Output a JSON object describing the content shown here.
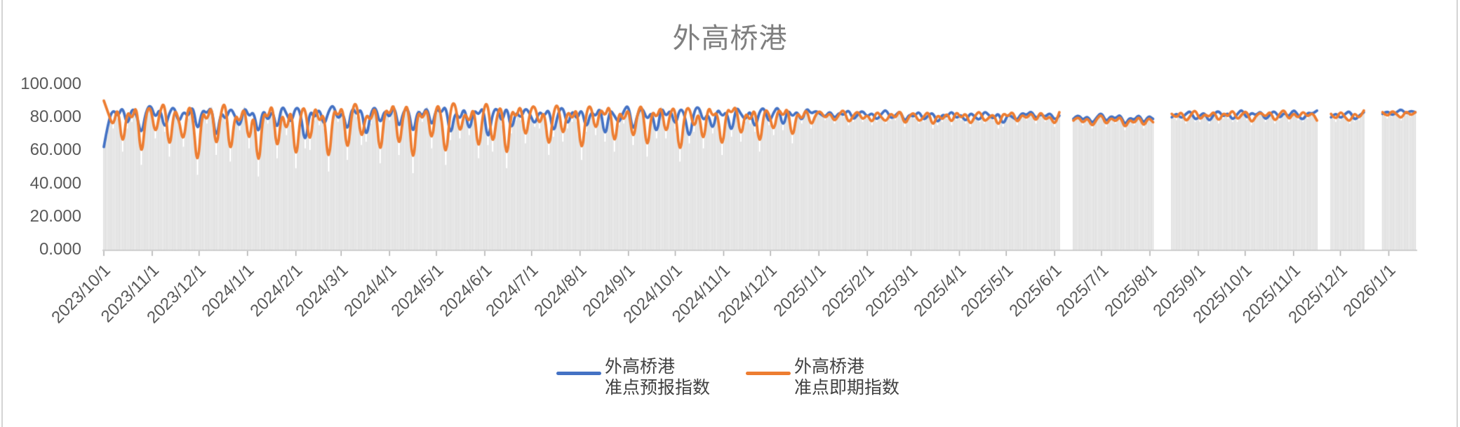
{
  "title": "外高桥港",
  "y_axis": {
    "tick_labels": [
      "100.000",
      "80.000",
      "60.000",
      "40.000",
      "20.000",
      "0.000"
    ],
    "tick_values": [
      100,
      80,
      60,
      40,
      20,
      0
    ]
  },
  "x_axis": {
    "tick_labels": [
      "2023/10/1",
      "2023/11/1",
      "2023/12/1",
      "2024/1/1",
      "2024/2/1",
      "2024/3/1",
      "2024/4/1",
      "2024/5/1",
      "2024/6/1",
      "2024/7/1",
      "2024/8/1",
      "2024/9/1",
      "2024/10/1",
      "2024/11/1",
      "2024/12/1",
      "2025/1/1",
      "2025/2/1",
      "2025/3/1",
      "2025/4/1",
      "2025/5/1",
      "2025/6/1",
      "2025/7/1",
      "2025/8/1",
      "2025/9/1",
      "2025/10/1",
      "2025/11/1",
      "2025/12/1",
      "2026/1/1"
    ]
  },
  "legend": {
    "items": [
      {
        "label_line1": "外高桥港",
        "label_line2": "准点预报指数",
        "color": "#4472C4"
      },
      {
        "label_line1": "外高桥港",
        "label_line2": "准点即期指数",
        "color": "#ED7D31"
      }
    ]
  },
  "colors": {
    "forecast_line": "#4472C4",
    "spot_line": "#ED7D31",
    "background_bars": "#D9D9D9",
    "axis": "#BFBFBF",
    "tick_mark": "#ADADAD",
    "title_text": "#7F7F7F",
    "axis_text": "#595959",
    "legend_text": "#404040"
  },
  "chart_data": {
    "type": "line",
    "title": "外高桥港",
    "xlabel": "",
    "ylabel": "",
    "ylim": [
      0,
      100
    ],
    "y_ticks": [
      0,
      20,
      40,
      60,
      80,
      100
    ],
    "x_start_date": "2023/10/1",
    "x_end_date": "2026/1/19",
    "x_tick_interval": "1 month",
    "sample_interval_days": 3,
    "grid": false,
    "legend_position": "bottom",
    "notes": "Daily noisy index data 0-100, estimated by sampling every 3 days. null = data gap (gaps near 2025/6/8-13, 2025/8/7-15, 2025/11/20-23, 2025/12/19-28). Gray background bars rise from 0 to the lower envelope of the two lines for every day with data.",
    "background_bars": {
      "present": true,
      "top_equals": "min(series) per day",
      "color": "#D9D9D9"
    },
    "series": [
      {
        "name": "外高桥港准点预报指数",
        "color": "#4472C4",
        "values": [
          62,
          78,
          85,
          80,
          87,
          74,
          86,
          82,
          68,
          84,
          88,
          79,
          86,
          72,
          83,
          87,
          76,
          84,
          80,
          88,
          70,
          85,
          82,
          87,
          65,
          84,
          78,
          86,
          81,
          73,
          87,
          80,
          84,
          68,
          86,
          77,
          85,
          71,
          88,
          82,
          76,
          87,
          83,
          62,
          85,
          79,
          86,
          74,
          84,
          88,
          78,
          84,
          70,
          87,
          81,
          86,
          66,
          83,
          87,
          75,
          85,
          79,
          88,
          72,
          84,
          86,
          68,
          85,
          80,
          87,
          73,
          86,
          82,
          88,
          67,
          84,
          78,
          87,
          70,
          85,
          81,
          87,
          64,
          83,
          86,
          76,
          88,
          71,
          84,
          79,
          86,
          82,
          75,
          84,
          80,
          86,
          69,
          83,
          87,
          74,
          85,
          78,
          86,
          72,
          84,
          80,
          87,
          66,
          85,
          81,
          76,
          84,
          88,
          70,
          83,
          86,
          78,
          84,
          68,
          87,
          80,
          85,
          74,
          86,
          82,
          65,
          84,
          87,
          77,
          83,
          71,
          86,
          80,
          84,
          69,
          87,
          82,
          78,
          85,
          72,
          84,
          86,
          76,
          83,
          87,
          73,
          85,
          80,
          84,
          77,
          86,
          82,
          84,
          82,
          80,
          84,
          79,
          83,
          81,
          85,
          78,
          82,
          84,
          80,
          83,
          78,
          82,
          85,
          79,
          81,
          84,
          77,
          82,
          80,
          84,
          78,
          81,
          83,
          76,
          82,
          80,
          84,
          79,
          82,
          77,
          83,
          80,
          78,
          84,
          81,
          79,
          83,
          75,
          82,
          80,
          78,
          83,
          81,
          84,
          79,
          82,
          80,
          83,
          78,
          81,
          null,
          null,
          79,
          82,
          78,
          81,
          76,
          80,
          83,
          77,
          81,
          79,
          82,
          75,
          80,
          78,
          82,
          76,
          81,
          79,
          null,
          null,
          null,
          80,
          83,
          79,
          82,
          84,
          78,
          81,
          83,
          77,
          82,
          84,
          80,
          83,
          78,
          82,
          85,
          79,
          83,
          81,
          84,
          78,
          82,
          84,
          79,
          83,
          80,
          85,
          81,
          78,
          83,
          82,
          84,
          null,
          null,
          80,
          83,
          79,
          82,
          84,
          78,
          81,
          83,
          null,
          null,
          null,
          82,
          84,
          81,
          83,
          85,
          82,
          84,
          83
        ]
      },
      {
        "name": "外高桥港准点即期指数",
        "color": "#ED7D31",
        "values": [
          90,
          82,
          74,
          88,
          60,
          85,
          78,
          89,
          52,
          83,
          87,
          68,
          84,
          90,
          57,
          86,
          79,
          63,
          88,
          82,
          46,
          85,
          77,
          89,
          58,
          84,
          90,
          54,
          83,
          76,
          88,
          62,
          86,
          45,
          84,
          79,
          90,
          56,
          85,
          70,
          88,
          50,
          83,
          87,
          61,
          89,
          76,
          84,
          48,
          86,
          80,
          88,
          55,
          85,
          90,
          64,
          83,
          77,
          89,
          53,
          86,
          81,
          90,
          58,
          84,
          88,
          47,
          85,
          78,
          87,
          62,
          89,
          83,
          52,
          86,
          90,
          68,
          84,
          76,
          88,
          56,
          85,
          90,
          60,
          83,
          87,
          50,
          86,
          79,
          89,
          65,
          84,
          88,
          74,
          86,
          58,
          84,
          89,
          66,
          85,
          78,
          87,
          55,
          84,
          88,
          70,
          86,
          80,
          89,
          60,
          85,
          77,
          87,
          64,
          84,
          88,
          57,
          85,
          79,
          88,
          68,
          84,
          86,
          54,
          83,
          87,
          72,
          85,
          62,
          88,
          80,
          84,
          58,
          86,
          82,
          88,
          66,
          84,
          77,
          87,
          60,
          85,
          83,
          70,
          86,
          80,
          87,
          65,
          84,
          78,
          86,
          74,
          82,
          84,
          79,
          83,
          77,
          82,
          85,
          76,
          81,
          84,
          78,
          82,
          76,
          84,
          80,
          77,
          83,
          79,
          85,
          75,
          81,
          83,
          77,
          80,
          84,
          74,
          82,
          78,
          83,
          76,
          84,
          79,
          83,
          75,
          81,
          84,
          77,
          80,
          82,
          74,
          83,
          80,
          84,
          76,
          82,
          79,
          83,
          77,
          84,
          78,
          81,
          75,
          83,
          null,
          null,
          78,
          81,
          76,
          80,
          74,
          79,
          82,
          75,
          80,
          77,
          81,
          73,
          79,
          76,
          81,
          74,
          80,
          77,
          null,
          null,
          null,
          82,
          79,
          84,
          77,
          81,
          85,
          78,
          82,
          80,
          84,
          77,
          83,
          80,
          85,
          78,
          82,
          84,
          76,
          81,
          83,
          80,
          84,
          77,
          82,
          85,
          78,
          83,
          79,
          84,
          80,
          83,
          78,
          null,
          null,
          82,
          78,
          84,
          80,
          77,
          83,
          79,
          84,
          null,
          null,
          null,
          83,
          80,
          84,
          82,
          79,
          84,
          81,
          83
        ]
      }
    ]
  }
}
